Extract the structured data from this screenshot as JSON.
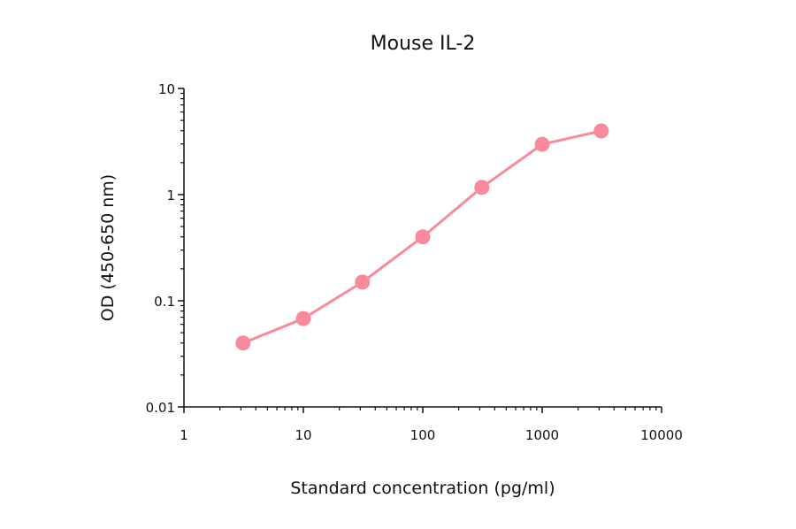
{
  "chart_data": {
    "type": "line",
    "title": "Mouse IL-2",
    "xlabel": "Standard concentration (pg/ml)",
    "ylabel": "OD (450-650 nm)",
    "xscale": "log",
    "yscale": "log",
    "xlim": [
      1,
      10000
    ],
    "ylim": [
      0.01,
      10
    ],
    "xticks": [
      "1",
      "10",
      "100",
      "1000",
      "10000"
    ],
    "yticks": [
      "0.01",
      "0.1",
      "1",
      "10"
    ],
    "grid": false,
    "color": "#f98a9b",
    "series": [
      {
        "x": [
          3.125,
          10,
          31.25,
          100,
          312.5,
          1000,
          3125
        ],
        "y": [
          0.04,
          0.068,
          0.15,
          0.4,
          1.17,
          2.98,
          3.98
        ]
      }
    ]
  }
}
